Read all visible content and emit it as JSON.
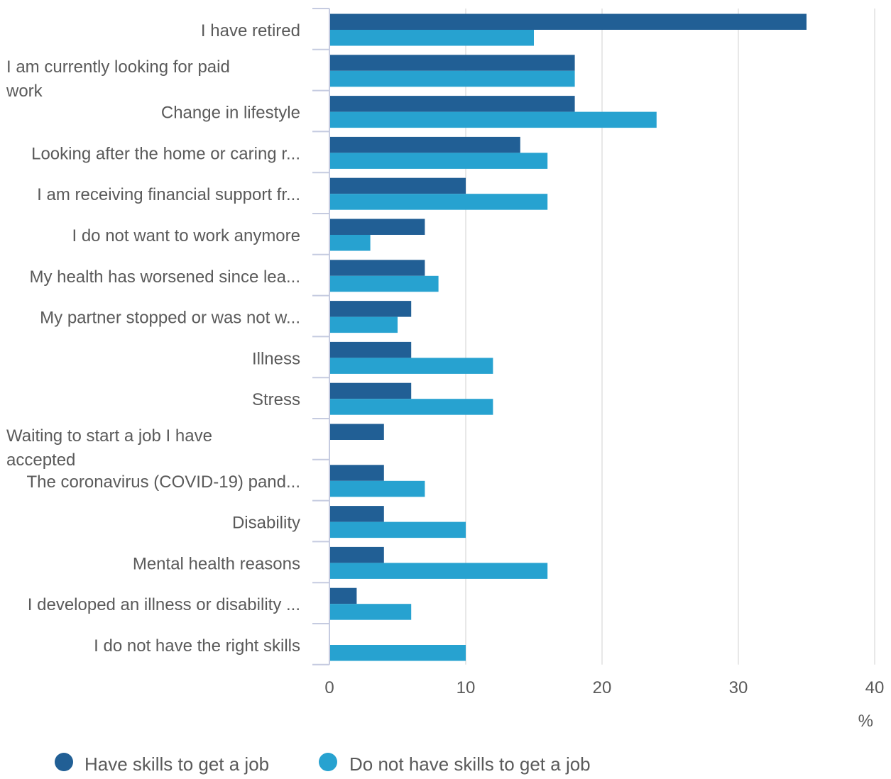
{
  "colors": {
    "series_dark": "#215f95",
    "series_light": "#27a2d0",
    "grid": "#e1e1e1",
    "axis": "#c5cbe0",
    "text": "#5a5a5a"
  },
  "chart_data": {
    "type": "bar",
    "orientation": "horizontal",
    "categories": [
      "I have retired",
      "I am currently looking for paid work",
      "Change in lifestyle",
      "Looking after the home or caring r...",
      "I am receiving financial support fr...",
      "I do not want to work anymore",
      "My health has worsened since lea...",
      "My partner stopped or was not w...",
      "Illness",
      "Stress",
      "Waiting to start a job I have accepted",
      "The coronavirus (COVID-19) pand...",
      "Disability",
      "Mental health reasons",
      "I developed an illness or disability ...",
      "I do not have the right skills"
    ],
    "series": [
      {
        "name": "Have skills to get a job",
        "values": [
          35,
          18,
          18,
          14,
          10,
          7,
          7,
          6,
          6,
          6,
          4,
          4,
          4,
          4,
          2,
          0
        ]
      },
      {
        "name": "Do not have skills to get a job",
        "values": [
          15,
          18,
          24,
          16,
          16,
          3,
          8,
          5,
          12,
          12,
          0,
          7,
          10,
          16,
          6,
          10
        ]
      }
    ],
    "xlim": [
      0,
      40
    ],
    "xticks": [
      "0",
      "10",
      "20",
      "30",
      "40"
    ],
    "xlabel": "%",
    "ylabel": "",
    "title": "",
    "grid": "vertical",
    "legend": "bottom-left"
  }
}
